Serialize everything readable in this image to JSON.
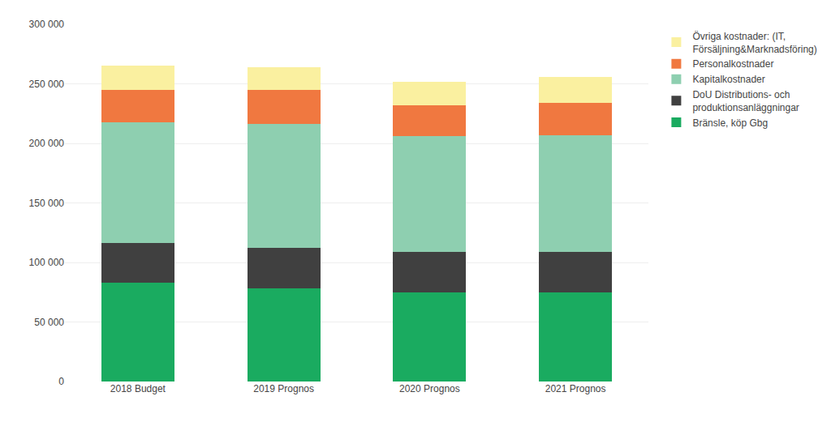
{
  "chart_data": {
    "type": "bar",
    "stacked": true,
    "categories": [
      "2018 Budget",
      "2019 Prognos",
      "2020 Prognos",
      "2021 Prognos"
    ],
    "series": [
      {
        "name": "Bränsle, köp Gbg",
        "color": "#1aab60",
        "values": [
          83000,
          78000,
          75000,
          75000
        ]
      },
      {
        "name": "DoU Distributions- och\nproduktionsanläggningar",
        "color": "#404040",
        "values": [
          33000,
          34000,
          34000,
          34000
        ]
      },
      {
        "name": "Kapitalkostnader",
        "color": "#8ecfb0",
        "values": [
          102000,
          104000,
          97000,
          98000
        ]
      },
      {
        "name": "Personalkostnader",
        "color": "#f07840",
        "values": [
          27000,
          29000,
          26000,
          27000
        ]
      },
      {
        "name": "Övriga kostnader: (IT,\nFörsäljning&Marknadsföring)",
        "color": "#faf0a0",
        "values": [
          20000,
          19000,
          20000,
          22000
        ]
      }
    ],
    "ylim": [
      0,
      300000
    ],
    "yticks": [
      0,
      {
        "value": 50000,
        "label": "50 000"
      },
      {
        "value": 100000,
        "label": "100 000"
      },
      {
        "value": 150000,
        "label": "150 000"
      },
      {
        "value": 200000,
        "label": "200 000"
      },
      {
        "value": 250000,
        "label": "250 000"
      },
      {
        "value": 300000,
        "label": "300 000"
      }
    ],
    "grid": true,
    "legend": "right"
  }
}
